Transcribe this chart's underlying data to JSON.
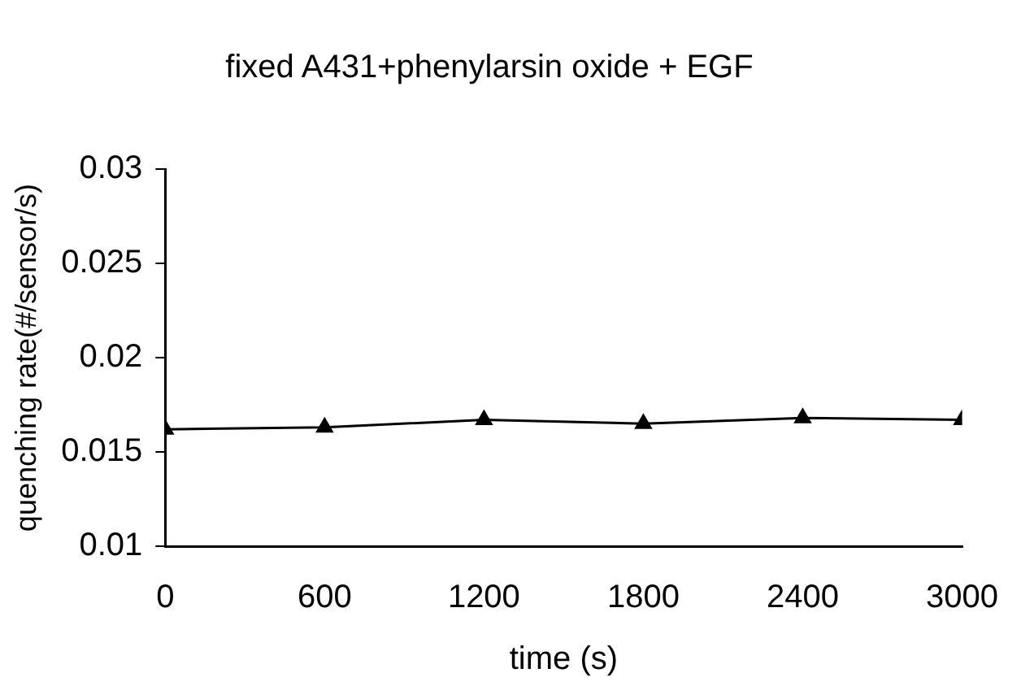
{
  "chart_data": {
    "type": "line",
    "title": "fixed A431+phenylarsin oxide + EGF",
    "xlabel": "time (s)",
    "ylabel": "quenching rate(#/sensor/s)",
    "x": [
      0,
      600,
      1200,
      1800,
      2400,
      3000
    ],
    "series": [
      {
        "color": "#000000",
        "values": [
          0.0162,
          0.0163,
          0.0167,
          0.0165,
          0.0168,
          0.0167
        ]
      }
    ],
    "xlim": [
      0,
      3000
    ],
    "xticks": [
      0,
      600,
      1200,
      1800,
      2400,
      3000
    ],
    "ylim": [
      0.01,
      0.03
    ],
    "yticks": [
      0.01,
      0.015,
      0.02,
      0.025,
      0.03
    ],
    "grid": false,
    "legend": false,
    "marker": "triangle",
    "line_style": "solid"
  }
}
